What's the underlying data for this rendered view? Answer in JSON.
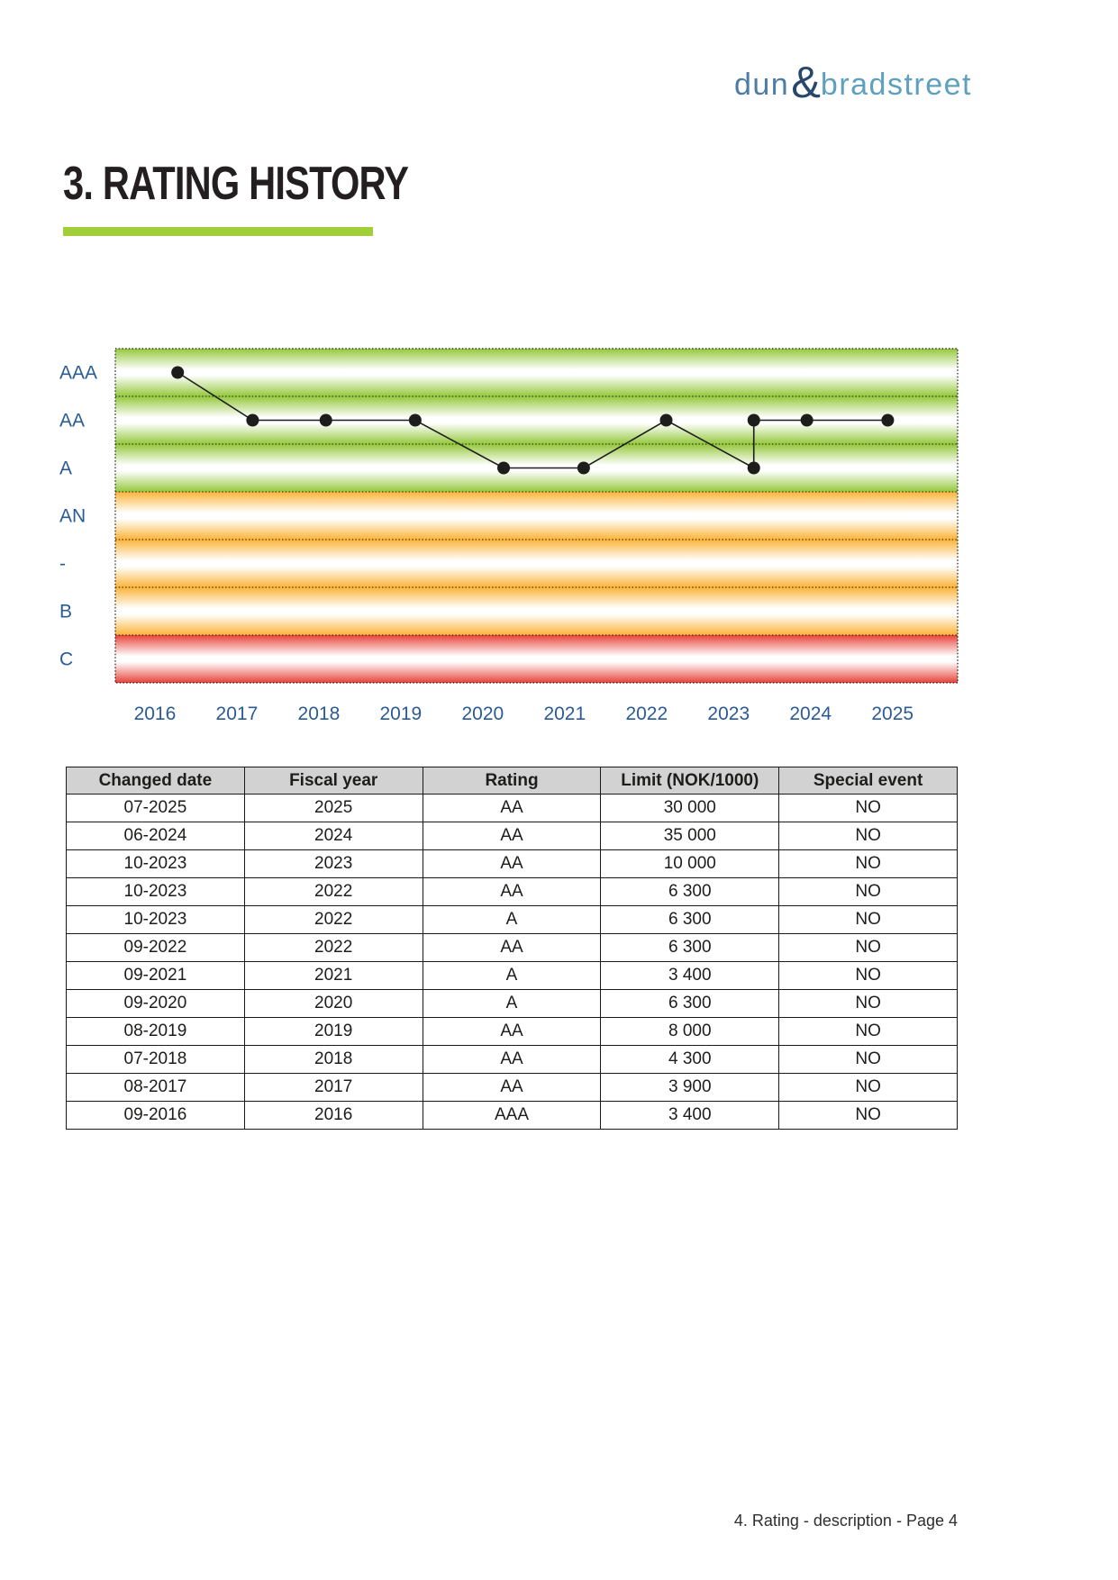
{
  "logo": {
    "dun": "dun",
    "ampersand": "&",
    "bradstreet": "bradstreet"
  },
  "title": "3. RATING HISTORY",
  "chart_data": {
    "type": "line",
    "title": "Rating history 2016-2025",
    "y_bands": [
      {
        "label": "AAA",
        "color_key": "green"
      },
      {
        "label": "AA",
        "color_key": "green"
      },
      {
        "label": "A",
        "color_key": "green"
      },
      {
        "label": "AN",
        "color_key": "orange"
      },
      {
        "label": "-",
        "color_key": "orange"
      },
      {
        "label": "B",
        "color_key": "orange"
      },
      {
        "label": "C",
        "color_key": "red"
      }
    ],
    "band_edge_colors": {
      "green": "#94c83d",
      "orange": "#fbb43a",
      "red": "#e8433a"
    },
    "x_ticks": [
      "2016",
      "2017",
      "2018",
      "2019",
      "2020",
      "2021",
      "2022",
      "2023",
      "2024",
      "2025"
    ],
    "points": [
      {
        "date": "09-2016",
        "rating": "AAA",
        "x_frac": 0.074
      },
      {
        "date": "08-2017",
        "rating": "AA",
        "x_frac": 0.163
      },
      {
        "date": "07-2018",
        "rating": "AA",
        "x_frac": 0.25
      },
      {
        "date": "08-2019",
        "rating": "AA",
        "x_frac": 0.356
      },
      {
        "date": "09-2020",
        "rating": "A",
        "x_frac": 0.461
      },
      {
        "date": "09-2021",
        "rating": "A",
        "x_frac": 0.556
      },
      {
        "date": "09-2022",
        "rating": "AA",
        "x_frac": 0.654
      },
      {
        "date": "10-2023",
        "rating": "A",
        "x_frac": 0.758
      },
      {
        "date": "10-2023",
        "rating": "AA",
        "x_frac": 0.758
      },
      {
        "date": "06-2024",
        "rating": "AA",
        "x_frac": 0.821
      },
      {
        "date": "07-2025",
        "rating": "AA",
        "x_frac": 0.917
      }
    ],
    "line_color": "#1d1d1b",
    "label_color": "#2b5b94",
    "grid": "dashed-band-boundaries",
    "legend_position": "none"
  },
  "table": {
    "headers": [
      "Changed date",
      "Fiscal year",
      "Rating",
      "Limit (NOK/1000)",
      "Special event"
    ],
    "rows": [
      [
        "07-2025",
        "2025",
        "AA",
        "30 000",
        "NO"
      ],
      [
        "06-2024",
        "2024",
        "AA",
        "35 000",
        "NO"
      ],
      [
        "10-2023",
        "2023",
        "AA",
        "10 000",
        "NO"
      ],
      [
        "10-2023",
        "2022",
        "AA",
        "6 300",
        "NO"
      ],
      [
        "10-2023",
        "2022",
        "A",
        "6 300",
        "NO"
      ],
      [
        "09-2022",
        "2022",
        "AA",
        "6 300",
        "NO"
      ],
      [
        "09-2021",
        "2021",
        "A",
        "3 400",
        "NO"
      ],
      [
        "09-2020",
        "2020",
        "A",
        "6 300",
        "NO"
      ],
      [
        "08-2019",
        "2019",
        "AA",
        "8 000",
        "NO"
      ],
      [
        "07-2018",
        "2018",
        "AA",
        "4 300",
        "NO"
      ],
      [
        "08-2017",
        "2017",
        "AA",
        "3 900",
        "NO"
      ],
      [
        "09-2016",
        "2016",
        "AAA",
        "3 400",
        "NO"
      ]
    ]
  },
  "footer": "4. Rating - description - Page 4",
  "colors": {
    "accent_green": "#a2ce3a",
    "logo_dun": "#4d7ca4",
    "logo_ampersand": "#27486b",
    "logo_bradstreet": "#5fa0bf",
    "title_text": "#231f20",
    "axis_label_blue": "#2b5b94",
    "table_header_bg": "#d2d2d2"
  }
}
